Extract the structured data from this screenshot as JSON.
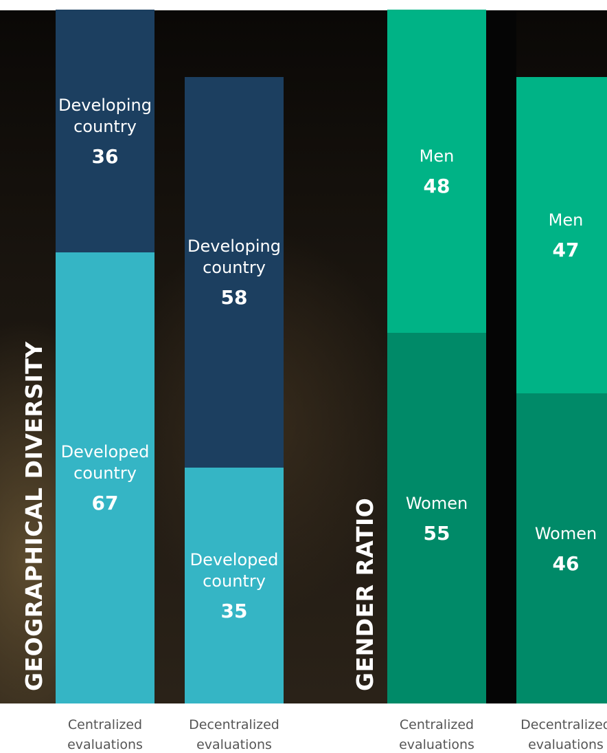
{
  "chart_data": [
    {
      "type": "stacked_bar",
      "title": "GEOGRAPHICAL DIVERSITY",
      "categories": [
        "Centralized evaluations",
        "Decentralized evaluations"
      ],
      "series": [
        {
          "name": "Developed country",
          "color": "#35b5c5",
          "values": [
            67,
            35
          ]
        },
        {
          "name": "Developing country",
          "color": "#1c3f60",
          "values": [
            36,
            58
          ]
        }
      ],
      "ylim": [
        0,
        104
      ]
    },
    {
      "type": "stacked_bar",
      "title": "GENDER RATIO",
      "categories": [
        "Centralized evaluations",
        "Decentralized evaluations"
      ],
      "series": [
        {
          "name": "Women",
          "color": "#008a68",
          "values": [
            55,
            46
          ]
        },
        {
          "name": "Men",
          "color": "#00b386",
          "values": [
            48,
            47
          ]
        }
      ],
      "ylim": [
        0,
        104
      ]
    }
  ]
}
